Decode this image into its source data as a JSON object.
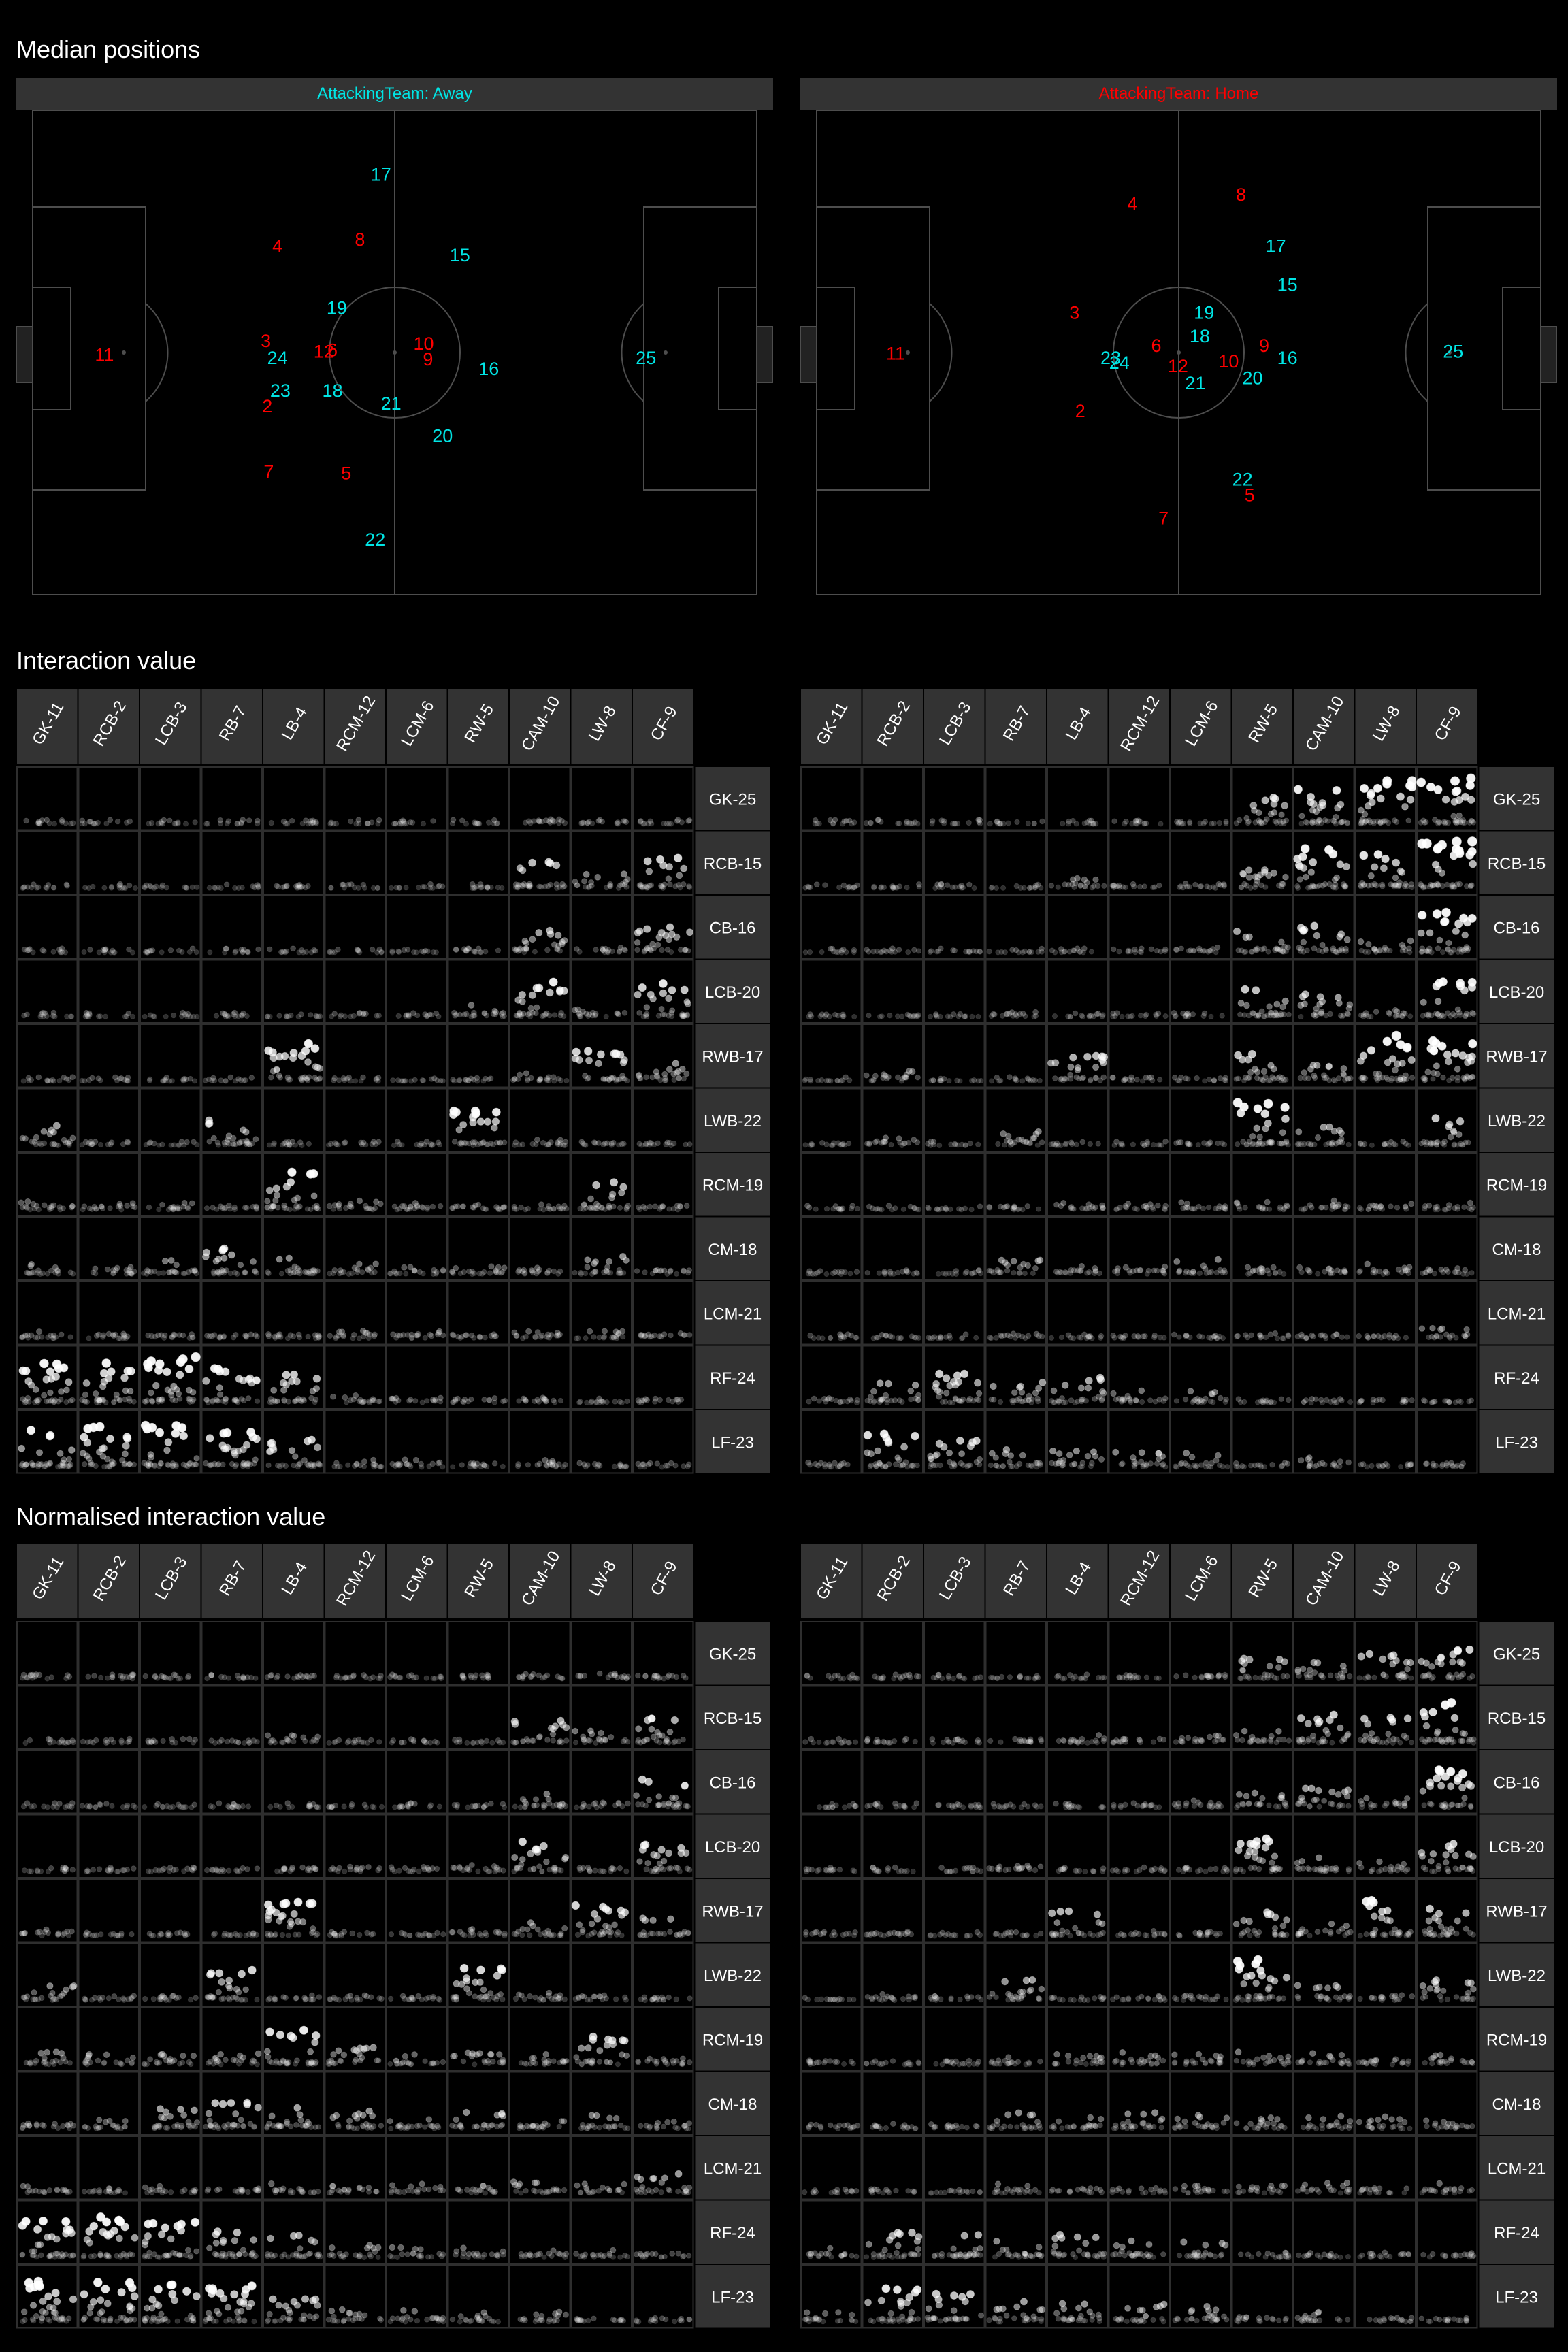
{
  "colors": {
    "background": "#000000",
    "strip": "#333333",
    "pitch_line": "#4d4d4d",
    "away": "#00e5e5",
    "home": "#ff0000",
    "point": "#ffffff"
  },
  "sections": {
    "median_positions": "Median positions",
    "interaction_value": "Interaction value",
    "normalised_interaction_value": "Normalised interaction value"
  },
  "panels": [
    {
      "label": "AttackingTeam: Away",
      "label_color": "#00e5e5"
    },
    {
      "label": "AttackingTeam: Home",
      "label_color": "#ff0000"
    }
  ],
  "chart_data": [
    {
      "type": "scatter",
      "title": "Median positions",
      "facet": "AttackingTeam: Away",
      "xlim": [
        0,
        100
      ],
      "ylim": [
        0,
        100
      ],
      "series": [
        {
          "color": "#ff0000",
          "points": [
            {
              "label": "11",
              "x": 9.9,
              "y": 49.5
            },
            {
              "label": "4",
              "x": 33.8,
              "y": 72.0
            },
            {
              "label": "8",
              "x": 45.2,
              "y": 73.3
            },
            {
              "label": "3",
              "x": 32.2,
              "y": 52.4
            },
            {
              "label": "12",
              "x": 40.2,
              "y": 50.2
            },
            {
              "label": "6",
              "x": 41.4,
              "y": 50.5
            },
            {
              "label": "10",
              "x": 54.0,
              "y": 51.8
            },
            {
              "label": "9",
              "x": 54.6,
              "y": 48.6
            },
            {
              "label": "2",
              "x": 32.4,
              "y": 38.9
            },
            {
              "label": "7",
              "x": 32.6,
              "y": 25.4
            },
            {
              "label": "5",
              "x": 43.3,
              "y": 25.1
            }
          ]
        },
        {
          "color": "#00e5e5",
          "points": [
            {
              "label": "17",
              "x": 48.1,
              "y": 86.7
            },
            {
              "label": "15",
              "x": 59.0,
              "y": 70.1
            },
            {
              "label": "19",
              "x": 42.0,
              "y": 59.2
            },
            {
              "label": "24",
              "x": 33.8,
              "y": 48.9
            },
            {
              "label": "18",
              "x": 41.4,
              "y": 42.1
            },
            {
              "label": "23",
              "x": 34.2,
              "y": 42.1
            },
            {
              "label": "21",
              "x": 49.5,
              "y": 39.5
            },
            {
              "label": "16",
              "x": 63.0,
              "y": 46.6
            },
            {
              "label": "20",
              "x": 56.6,
              "y": 32.8
            },
            {
              "label": "22",
              "x": 47.3,
              "y": 11.4
            },
            {
              "label": "25",
              "x": 84.7,
              "y": 48.9
            }
          ]
        }
      ]
    },
    {
      "type": "scatter",
      "title": "Median positions",
      "facet": "AttackingTeam: Home",
      "xlim": [
        0,
        100
      ],
      "ylim": [
        0,
        100
      ],
      "series": [
        {
          "color": "#ff0000",
          "points": [
            {
              "label": "11",
              "x": 10.9,
              "y": 49.8
            },
            {
              "label": "4",
              "x": 43.6,
              "y": 80.7
            },
            {
              "label": "8",
              "x": 58.6,
              "y": 82.6
            },
            {
              "label": "3",
              "x": 35.6,
              "y": 58.2
            },
            {
              "label": "6",
              "x": 46.9,
              "y": 51.4
            },
            {
              "label": "12",
              "x": 49.9,
              "y": 47.2
            },
            {
              "label": "10",
              "x": 56.9,
              "y": 48.2
            },
            {
              "label": "9",
              "x": 61.8,
              "y": 51.4
            },
            {
              "label": "2",
              "x": 36.4,
              "y": 37.9
            },
            {
              "label": "5",
              "x": 59.8,
              "y": 20.6
            },
            {
              "label": "7",
              "x": 47.9,
              "y": 15.8
            }
          ]
        },
        {
          "color": "#00e5e5",
          "points": [
            {
              "label": "17",
              "x": 63.4,
              "y": 72.0
            },
            {
              "label": "15",
              "x": 65.0,
              "y": 64.0
            },
            {
              "label": "19",
              "x": 53.5,
              "y": 58.2
            },
            {
              "label": "18",
              "x": 52.9,
              "y": 53.4
            },
            {
              "label": "23",
              "x": 40.6,
              "y": 48.9
            },
            {
              "label": "24",
              "x": 41.8,
              "y": 47.9
            },
            {
              "label": "21",
              "x": 52.3,
              "y": 43.7
            },
            {
              "label": "20",
              "x": 60.2,
              "y": 44.7
            },
            {
              "label": "16",
              "x": 65.0,
              "y": 48.9
            },
            {
              "label": "22",
              "x": 58.8,
              "y": 23.8
            },
            {
              "label": "25",
              "x": 87.9,
              "y": 50.2
            }
          ]
        }
      ]
    },
    {
      "type": "scatter",
      "title": "Interaction value",
      "facet": "AttackingTeam: Away",
      "columns": [
        "GK-11",
        "RCB-2",
        "LCB-3",
        "RB-7",
        "LB-4",
        "RCM-12",
        "LCM-6",
        "RW-5",
        "CAM-10",
        "LW-8",
        "CF-9"
      ],
      "rows": [
        "GK-25",
        "RCB-15",
        "CB-16",
        "LCB-20",
        "RWB-17",
        "LWB-22",
        "RCM-19",
        "CM-18",
        "LCM-21",
        "RF-24",
        "LF-23"
      ],
      "ylim": [
        0,
        1
      ],
      "cell_intensity": [
        [
          0.02,
          0.01,
          0.01,
          0.01,
          0.02,
          0.01,
          0.01,
          0.02,
          0.12,
          0.05,
          0.05
        ],
        [
          0.02,
          0.01,
          0.03,
          0.01,
          0.08,
          0.01,
          0.01,
          0.02,
          0.55,
          0.3,
          0.6
        ],
        [
          0.01,
          0.01,
          0.01,
          0.01,
          0.01,
          0.01,
          0.01,
          0.05,
          0.45,
          0.1,
          0.55
        ],
        [
          0.01,
          0.01,
          0.01,
          0.02,
          0.02,
          0.01,
          0.02,
          0.25,
          0.7,
          0.15,
          0.7
        ],
        [
          0.05,
          0.02,
          0.02,
          0.02,
          0.75,
          0.02,
          0.02,
          0.08,
          0.3,
          0.6,
          0.35
        ],
        [
          0.4,
          0.03,
          0.02,
          0.55,
          0.05,
          0.03,
          0.03,
          0.75,
          0.2,
          0.05,
          0.05
        ],
        [
          0.25,
          0.15,
          0.15,
          0.1,
          0.75,
          0.2,
          0.2,
          0.2,
          0.2,
          0.55,
          0.1
        ],
        [
          0.2,
          0.15,
          0.4,
          0.55,
          0.4,
          0.2,
          0.2,
          0.3,
          0.15,
          0.4,
          0.1
        ],
        [
          0.15,
          0.1,
          0.1,
          0.1,
          0.2,
          0.15,
          0.15,
          0.1,
          0.15,
          0.15,
          0.1
        ],
        [
          0.9,
          0.85,
          0.9,
          0.7,
          0.6,
          0.15,
          0.1,
          0.1,
          0.1,
          0.1,
          0.08
        ],
        [
          0.85,
          0.8,
          0.85,
          0.8,
          0.55,
          0.15,
          0.15,
          0.1,
          0.15,
          0.08,
          0.08
        ]
      ]
    },
    {
      "type": "scatter",
      "title": "Interaction value",
      "facet": "AttackingTeam: Home",
      "columns": [
        "GK-11",
        "RCB-2",
        "LCB-3",
        "RB-7",
        "LB-4",
        "RCM-12",
        "LCM-6",
        "RW-5",
        "CAM-10",
        "LW-8",
        "CF-9"
      ],
      "rows": [
        "GK-25",
        "RCB-15",
        "CB-16",
        "LCB-20",
        "RWB-17",
        "LWB-22",
        "RCM-19",
        "CM-18",
        "LCM-21",
        "RF-24",
        "LF-23"
      ],
      "ylim": [
        0,
        1
      ],
      "cell_intensity": [
        [
          0.01,
          0.03,
          0.01,
          0.01,
          0.01,
          0.01,
          0.05,
          0.55,
          0.75,
          0.85,
          0.9
        ],
        [
          0.02,
          0.02,
          0.02,
          0.02,
          0.2,
          0.05,
          0.1,
          0.4,
          0.8,
          0.7,
          0.95
        ],
        [
          0.01,
          0.05,
          0.03,
          0.02,
          0.02,
          0.03,
          0.1,
          0.45,
          0.55,
          0.3,
          0.9
        ],
        [
          0.01,
          0.01,
          0.02,
          0.1,
          0.02,
          0.02,
          0.02,
          0.65,
          0.45,
          0.2,
          0.7
        ],
        [
          0.02,
          0.2,
          0.02,
          0.02,
          0.55,
          0.05,
          0.05,
          0.55,
          0.35,
          0.9,
          0.8
        ],
        [
          0.02,
          0.15,
          0.02,
          0.3,
          0.02,
          0.05,
          0.05,
          0.9,
          0.4,
          0.05,
          0.55
        ],
        [
          0.02,
          0.02,
          0.02,
          0.05,
          0.15,
          0.15,
          0.2,
          0.15,
          0.2,
          0.15,
          0.15
        ],
        [
          0.05,
          0.05,
          0.02,
          0.3,
          0.2,
          0.2,
          0.3,
          0.2,
          0.15,
          0.2,
          0.15
        ],
        [
          0.02,
          0.02,
          0.02,
          0.1,
          0.05,
          0.05,
          0.1,
          0.1,
          0.1,
          0.05,
          0.2
        ],
        [
          0.1,
          0.45,
          0.6,
          0.4,
          0.5,
          0.25,
          0.25,
          0.05,
          0.05,
          0.05,
          0.05
        ],
        [
          0.1,
          0.7,
          0.55,
          0.35,
          0.35,
          0.3,
          0.3,
          0.05,
          0.2,
          0.05,
          0.1
        ]
      ]
    },
    {
      "type": "scatter",
      "title": "Normalised interaction value",
      "facet": "AttackingTeam: Away",
      "columns": [
        "GK-11",
        "RCB-2",
        "LCB-3",
        "RB-7",
        "LB-4",
        "RCM-12",
        "LCM-6",
        "RW-5",
        "CAM-10",
        "LW-8",
        "CF-9"
      ],
      "rows": [
        "GK-25",
        "RCB-15",
        "CB-16",
        "LCB-20",
        "RWB-17",
        "LWB-22",
        "RCM-19",
        "CM-18",
        "LCM-21",
        "RF-24",
        "LF-23"
      ],
      "ylim": [
        0,
        1
      ],
      "cell_intensity": [
        [
          0.05,
          0.05,
          0.05,
          0.05,
          0.05,
          0.05,
          0.05,
          0.05,
          0.1,
          0.1,
          0.1
        ],
        [
          0.02,
          0.02,
          0.02,
          0.02,
          0.15,
          0.02,
          0.02,
          0.02,
          0.45,
          0.25,
          0.5
        ],
        [
          0.02,
          0.02,
          0.02,
          0.02,
          0.02,
          0.02,
          0.02,
          0.05,
          0.4,
          0.1,
          0.55
        ],
        [
          0.05,
          0.05,
          0.05,
          0.05,
          0.1,
          0.1,
          0.1,
          0.15,
          0.6,
          0.1,
          0.55
        ],
        [
          0.15,
          0.05,
          0.05,
          0.05,
          0.7,
          0.05,
          0.05,
          0.15,
          0.3,
          0.6,
          0.35
        ],
        [
          0.3,
          0.1,
          0.1,
          0.6,
          0.1,
          0.1,
          0.1,
          0.7,
          0.2,
          0.1,
          0.1
        ],
        [
          0.25,
          0.2,
          0.25,
          0.25,
          0.7,
          0.35,
          0.25,
          0.25,
          0.25,
          0.55,
          0.2
        ],
        [
          0.2,
          0.2,
          0.45,
          0.6,
          0.45,
          0.35,
          0.25,
          0.35,
          0.25,
          0.3,
          0.15
        ],
        [
          0.15,
          0.1,
          0.15,
          0.1,
          0.2,
          0.2,
          0.2,
          0.15,
          0.25,
          0.2,
          0.45
        ],
        [
          0.8,
          0.8,
          0.75,
          0.55,
          0.45,
          0.25,
          0.2,
          0.2,
          0.15,
          0.15,
          0.1
        ],
        [
          0.8,
          0.8,
          0.75,
          0.75,
          0.45,
          0.25,
          0.25,
          0.2,
          0.2,
          0.1,
          0.05
        ]
      ]
    },
    {
      "type": "scatter",
      "title": "Normalised interaction value",
      "facet": "AttackingTeam: Home",
      "columns": [
        "GK-11",
        "RCB-2",
        "LCB-3",
        "RB-7",
        "LB-4",
        "RCM-12",
        "LCM-6",
        "RW-5",
        "CAM-10",
        "LW-8",
        "CF-9"
      ],
      "rows": [
        "GK-25",
        "RCB-15",
        "CB-16",
        "LCB-20",
        "RWB-17",
        "LWB-22",
        "RCM-19",
        "CM-18",
        "LCM-21",
        "RF-24",
        "LF-23"
      ],
      "ylim": [
        0,
        1
      ],
      "cell_intensity": [
        [
          0.02,
          0.05,
          0.02,
          0.02,
          0.02,
          0.02,
          0.1,
          0.4,
          0.35,
          0.5,
          0.6
        ],
        [
          0.02,
          0.05,
          0.05,
          0.05,
          0.2,
          0.1,
          0.15,
          0.25,
          0.6,
          0.5,
          0.8
        ],
        [
          0.02,
          0.05,
          0.05,
          0.02,
          0.02,
          0.05,
          0.15,
          0.3,
          0.4,
          0.2,
          0.75
        ],
        [
          0.05,
          0.02,
          0.02,
          0.15,
          0.02,
          0.05,
          0.05,
          0.65,
          0.35,
          0.2,
          0.55
        ],
        [
          0.05,
          0.15,
          0.02,
          0.02,
          0.5,
          0.1,
          0.1,
          0.5,
          0.25,
          0.7,
          0.6
        ],
        [
          0.02,
          0.15,
          0.05,
          0.4,
          0.05,
          0.1,
          0.1,
          0.8,
          0.3,
          0.1,
          0.4
        ],
        [
          0.05,
          0.05,
          0.1,
          0.15,
          0.25,
          0.25,
          0.25,
          0.25,
          0.25,
          0.2,
          0.2
        ],
        [
          0.1,
          0.1,
          0.1,
          0.35,
          0.3,
          0.4,
          0.3,
          0.25,
          0.25,
          0.25,
          0.2
        ],
        [
          0.05,
          0.05,
          0.05,
          0.2,
          0.1,
          0.1,
          0.15,
          0.15,
          0.2,
          0.1,
          0.2
        ],
        [
          0.2,
          0.55,
          0.55,
          0.4,
          0.45,
          0.35,
          0.35,
          0.1,
          0.1,
          0.1,
          0.1
        ],
        [
          0.2,
          0.7,
          0.55,
          0.4,
          0.4,
          0.35,
          0.35,
          0.1,
          0.2,
          0.05,
          0.1
        ]
      ]
    }
  ]
}
